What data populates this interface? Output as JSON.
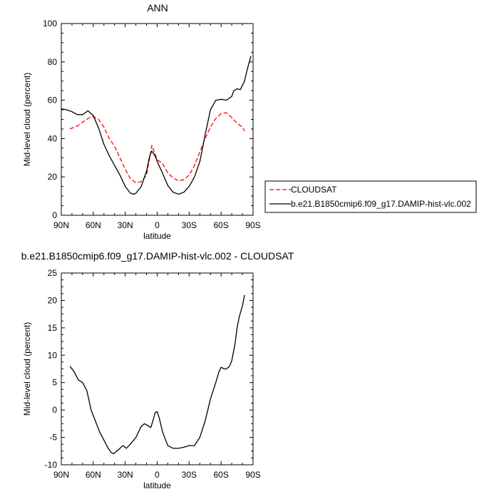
{
  "chart_data": [
    {
      "type": "line",
      "title": "ANN",
      "xlabel": "latitude",
      "ylabel": "Mid-level cloud (percent)",
      "xlim": [
        90,
        -90
      ],
      "ylim": [
        0,
        100
      ],
      "x_ticks": [
        90,
        60,
        30,
        0,
        -30,
        -60,
        -90
      ],
      "x_tick_labels": [
        "90N",
        "60N",
        "30N",
        "0",
        "30S",
        "60S",
        "90S"
      ],
      "y_ticks": [
        0,
        20,
        40,
        60,
        80,
        100
      ],
      "y_tick_labels": [
        "0",
        "20",
        "40",
        "60",
        "80",
        "100"
      ],
      "legend_placement": "lower-right outside",
      "series": [
        {
          "name": "CLOUDSAT",
          "color": "#ff0000",
          "dash": "dashed",
          "x": [
            82,
            75,
            70,
            65,
            60,
            55,
            50,
            45,
            40,
            35,
            30,
            25,
            20,
            15,
            10,
            7,
            5,
            2,
            0,
            -5,
            -10,
            -15,
            -20,
            -25,
            -30,
            -35,
            -40,
            -45,
            -50,
            -55,
            -60,
            -65,
            -70,
            -75,
            -80,
            -82
          ],
          "y": [
            45,
            46.5,
            48.5,
            50.5,
            51.5,
            50,
            46,
            40,
            36,
            30,
            24,
            19,
            17,
            17.5,
            21,
            30,
            36.5,
            32,
            29,
            27,
            22,
            19.5,
            18,
            18.5,
            21,
            26,
            33,
            40,
            46,
            50.5,
            53,
            53.5,
            51,
            48,
            46,
            44
          ]
        },
        {
          "name": "b.e21.B1850cmip6.f09_g17.DAMIP-hist-vlc.002",
          "color": "#000000",
          "dash": "solid",
          "x": [
            90,
            85,
            80,
            75,
            70,
            65,
            60,
            55,
            50,
            45,
            40,
            35,
            30,
            25,
            22,
            20,
            15,
            10,
            7,
            5,
            2,
            0,
            -5,
            -10,
            -15,
            -20,
            -25,
            -30,
            -35,
            -40,
            -45,
            -50,
            -55,
            -60,
            -65,
            -70,
            -72,
            -75,
            -78,
            -82,
            -85,
            -88
          ],
          "y": [
            55.5,
            55,
            54,
            52.5,
            52.5,
            54.5,
            52,
            45.5,
            37,
            31,
            26,
            21,
            15,
            11.5,
            11,
            11.5,
            15,
            23,
            31,
            33.5,
            31,
            28,
            22,
            15.5,
            12,
            11,
            12,
            15,
            20,
            28,
            42,
            55,
            60,
            60.5,
            60,
            62,
            65,
            66,
            65.5,
            70,
            77,
            83
          ]
        }
      ]
    },
    {
      "type": "line",
      "title": "b.e21.B1850cmip6.f09_g17.DAMIP-hist-vlc.002 - CLOUDSAT",
      "xlabel": "latitude",
      "ylabel": "Mid-level cloud (percent)",
      "xlim": [
        90,
        -90
      ],
      "ylim": [
        -10,
        25
      ],
      "x_ticks": [
        90,
        60,
        30,
        0,
        -30,
        -60,
        -90
      ],
      "x_tick_labels": [
        "90N",
        "60N",
        "30N",
        "0",
        "30S",
        "60S",
        "90S"
      ],
      "y_ticks": [
        -10,
        -5,
        0,
        5,
        10,
        15,
        20,
        25
      ],
      "y_tick_labels": [
        "-10",
        "-5",
        "0",
        "5",
        "10",
        "15",
        "20",
        "25"
      ],
      "series": [
        {
          "color": "#000000",
          "dash": "solid",
          "x": [
            82,
            78,
            74,
            70,
            66,
            62,
            58,
            54,
            50,
            46,
            43,
            41,
            38,
            36,
            34,
            32,
            29,
            25,
            20,
            15,
            12,
            9,
            6,
            4,
            2,
            0,
            -2,
            -5,
            -10,
            -15,
            -20,
            -25,
            -30,
            -35,
            -40,
            -45,
            -50,
            -55,
            -58,
            -60,
            -63,
            -65,
            -68,
            -70,
            -73,
            -75,
            -77,
            -80,
            -82
          ],
          "y": [
            8,
            7,
            5.5,
            5,
            3.5,
            0,
            -2,
            -4,
            -5.5,
            -7,
            -7.8,
            -8,
            -7.5,
            -7.2,
            -6.8,
            -6.5,
            -7,
            -6.2,
            -5,
            -3,
            -2.5,
            -2.8,
            -3.2,
            -2,
            -0.5,
            -0.3,
            -1.5,
            -4,
            -6.5,
            -7,
            -7,
            -6.8,
            -6.5,
            -6.5,
            -5,
            -2,
            2,
            5,
            7,
            7.8,
            7.5,
            7.5,
            8,
            9,
            12,
            15,
            17,
            19,
            21
          ]
        }
      ]
    }
  ]
}
